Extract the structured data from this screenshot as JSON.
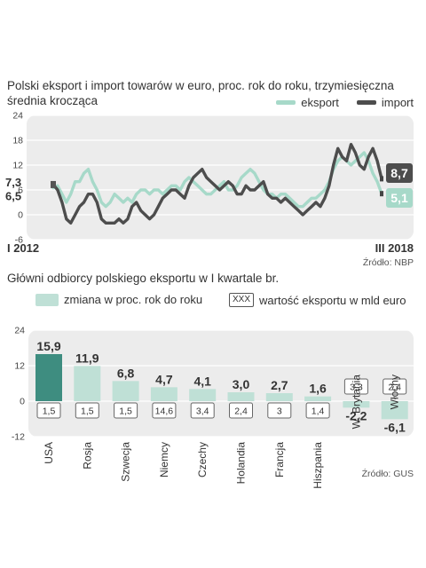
{
  "chart_data": [
    {
      "type": "line",
      "title": "Polski eksport i import towarów w euro, proc. rok do roku, trzymiesięczna średnia krocząca",
      "y_ticks": [
        "24",
        "18",
        "12",
        "6",
        "0",
        "-6"
      ],
      "ylim": [
        -6,
        24
      ],
      "x_start_label": "I 2012",
      "x_end_label": "III 2018",
      "source": "Źródło: NBP",
      "legend_placement": "top-right",
      "start_labels": {
        "eksport": "6,5",
        "import": "7,3"
      },
      "end_labels": {
        "import": "8,7",
        "eksport": "5,1"
      },
      "series": [
        {
          "name": "eksport",
          "color": "#a7d9c9",
          "values": [
            6.5,
            7,
            5,
            3,
            5,
            8,
            8,
            10,
            11,
            8,
            6,
            3,
            2,
            3,
            5,
            4,
            3,
            4,
            3,
            5,
            6,
            6,
            5,
            6,
            6,
            5,
            6,
            7,
            7,
            6,
            8,
            9,
            8,
            7,
            6,
            5,
            5,
            6,
            7,
            8,
            6,
            6,
            7,
            9,
            10,
            11,
            10,
            8,
            6,
            5,
            5,
            4,
            5,
            5,
            4,
            3,
            2,
            2,
            3,
            4,
            4,
            5,
            6,
            8,
            11,
            13,
            14,
            13,
            12,
            13,
            14,
            15,
            13,
            10,
            8,
            5.1
          ]
        },
        {
          "name": "import",
          "color": "#4d4d4d",
          "values": [
            7.3,
            6,
            3,
            -1,
            -2,
            0,
            2,
            3,
            5,
            5,
            3,
            -1,
            -2,
            -2,
            -2,
            -1,
            -2,
            -1,
            2,
            3,
            1,
            0,
            -1,
            0,
            2,
            4,
            5,
            6,
            6,
            5,
            4,
            7,
            9,
            10,
            11,
            9,
            8,
            7,
            6,
            7,
            8,
            7,
            5,
            5,
            7,
            6,
            6,
            7,
            8,
            5,
            4,
            4,
            3,
            4,
            3,
            2,
            1,
            0,
            1,
            2,
            3,
            2,
            4,
            7,
            12,
            16,
            14,
            13,
            17,
            15,
            12,
            11,
            14,
            16,
            13,
            8.7
          ]
        }
      ]
    },
    {
      "type": "bar",
      "title": "Główni odbiorcy polskiego eksportu w I kwartale br.",
      "legend": {
        "zmiana": "zmiana w proc. rok do roku",
        "xxx": "XXX",
        "wartosc": "wartość eksportu w mld euro"
      },
      "y_ticks": [
        "24",
        "12",
        "0",
        "-12"
      ],
      "ylim": [
        -12,
        24
      ],
      "source": "Źródło: GUS",
      "categories": [
        "USA",
        "Rosja",
        "Szwecja",
        "Niemcy",
        "Czechy",
        "Holandia",
        "Francja",
        "Hiszpania",
        "W. Brytania",
        "Włochy"
      ],
      "values": [
        15.9,
        11.9,
        6.8,
        4.7,
        4.1,
        3.0,
        2.7,
        1.6,
        -2.2,
        -6.1
      ],
      "value_labels": [
        "15,9",
        "11,9",
        "6,8",
        "4,7",
        "4,1",
        "3,0",
        "2,7",
        "1,6",
        "-2,2",
        "-6,1"
      ],
      "export_values": [
        "1,5",
        "1,5",
        "1,5",
        "14,6",
        "3,4",
        "2,4",
        "3",
        "1,4",
        "3,3",
        "2,4"
      ],
      "colors": {
        "highlight": "#3e8d80",
        "bar": "#bfe0d6"
      }
    }
  ]
}
